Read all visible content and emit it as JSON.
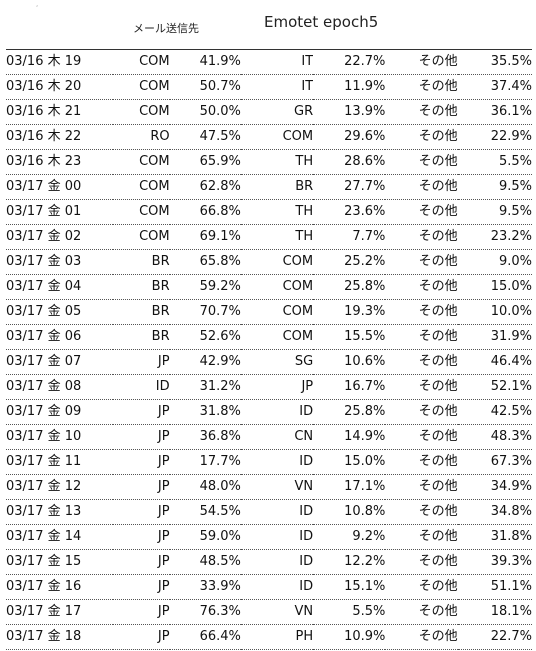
{
  "header": {
    "mark": ",",
    "subtitle": "メール送信先",
    "title": "Emotet epoch5"
  },
  "rows": [
    [
      "03/16 木 19",
      "COM",
      "41.9%",
      "IT",
      "22.7%",
      "その他",
      "35.5%"
    ],
    [
      "03/16 木 20",
      "COM",
      "50.7%",
      "IT",
      "11.9%",
      "その他",
      "37.4%"
    ],
    [
      "03/16 木 21",
      "COM",
      "50.0%",
      "GR",
      "13.9%",
      "その他",
      "36.1%"
    ],
    [
      "03/16 木 22",
      "RO",
      "47.5%",
      "COM",
      "29.6%",
      "その他",
      "22.9%"
    ],
    [
      "03/16 木 23",
      "COM",
      "65.9%",
      "TH",
      "28.6%",
      "その他",
      "5.5%"
    ],
    [
      "03/17 金 00",
      "COM",
      "62.8%",
      "BR",
      "27.7%",
      "その他",
      "9.5%"
    ],
    [
      "03/17 金 01",
      "COM",
      "66.8%",
      "TH",
      "23.6%",
      "その他",
      "9.5%"
    ],
    [
      "03/17 金 02",
      "COM",
      "69.1%",
      "TH",
      "7.7%",
      "その他",
      "23.2%"
    ],
    [
      "03/17 金 03",
      "BR",
      "65.8%",
      "COM",
      "25.2%",
      "その他",
      "9.0%"
    ],
    [
      "03/17 金 04",
      "BR",
      "59.2%",
      "COM",
      "25.8%",
      "その他",
      "15.0%"
    ],
    [
      "03/17 金 05",
      "BR",
      "70.7%",
      "COM",
      "19.3%",
      "その他",
      "10.0%"
    ],
    [
      "03/17 金 06",
      "BR",
      "52.6%",
      "COM",
      "15.5%",
      "その他",
      "31.9%"
    ],
    [
      "03/17 金 07",
      "JP",
      "42.9%",
      "SG",
      "10.6%",
      "その他",
      "46.4%"
    ],
    [
      "03/17 金 08",
      "ID",
      "31.2%",
      "JP",
      "16.7%",
      "その他",
      "52.1%"
    ],
    [
      "03/17 金 09",
      "JP",
      "31.8%",
      "ID",
      "25.8%",
      "その他",
      "42.5%"
    ],
    [
      "03/17 金 10",
      "JP",
      "36.8%",
      "CN",
      "14.9%",
      "その他",
      "48.3%"
    ],
    [
      "03/17 金 11",
      "JP",
      "17.7%",
      "ID",
      "15.0%",
      "その他",
      "67.3%"
    ],
    [
      "03/17 金 12",
      "JP",
      "48.0%",
      "VN",
      "17.1%",
      "その他",
      "34.9%"
    ],
    [
      "03/17 金 13",
      "JP",
      "54.5%",
      "ID",
      "10.8%",
      "その他",
      "34.8%"
    ],
    [
      "03/17 金 14",
      "JP",
      "59.0%",
      "ID",
      "9.2%",
      "その他",
      "31.8%"
    ],
    [
      "03/17 金 15",
      "JP",
      "48.5%",
      "ID",
      "12.2%",
      "その他",
      "39.3%"
    ],
    [
      "03/17 金 16",
      "JP",
      "33.9%",
      "ID",
      "15.1%",
      "その他",
      "51.1%"
    ],
    [
      "03/17 金 17",
      "JP",
      "76.3%",
      "VN",
      "5.5%",
      "その他",
      "18.1%"
    ],
    [
      "03/17 金 18",
      "JP",
      "66.4%",
      "PH",
      "10.9%",
      "その他",
      "22.7%"
    ]
  ]
}
